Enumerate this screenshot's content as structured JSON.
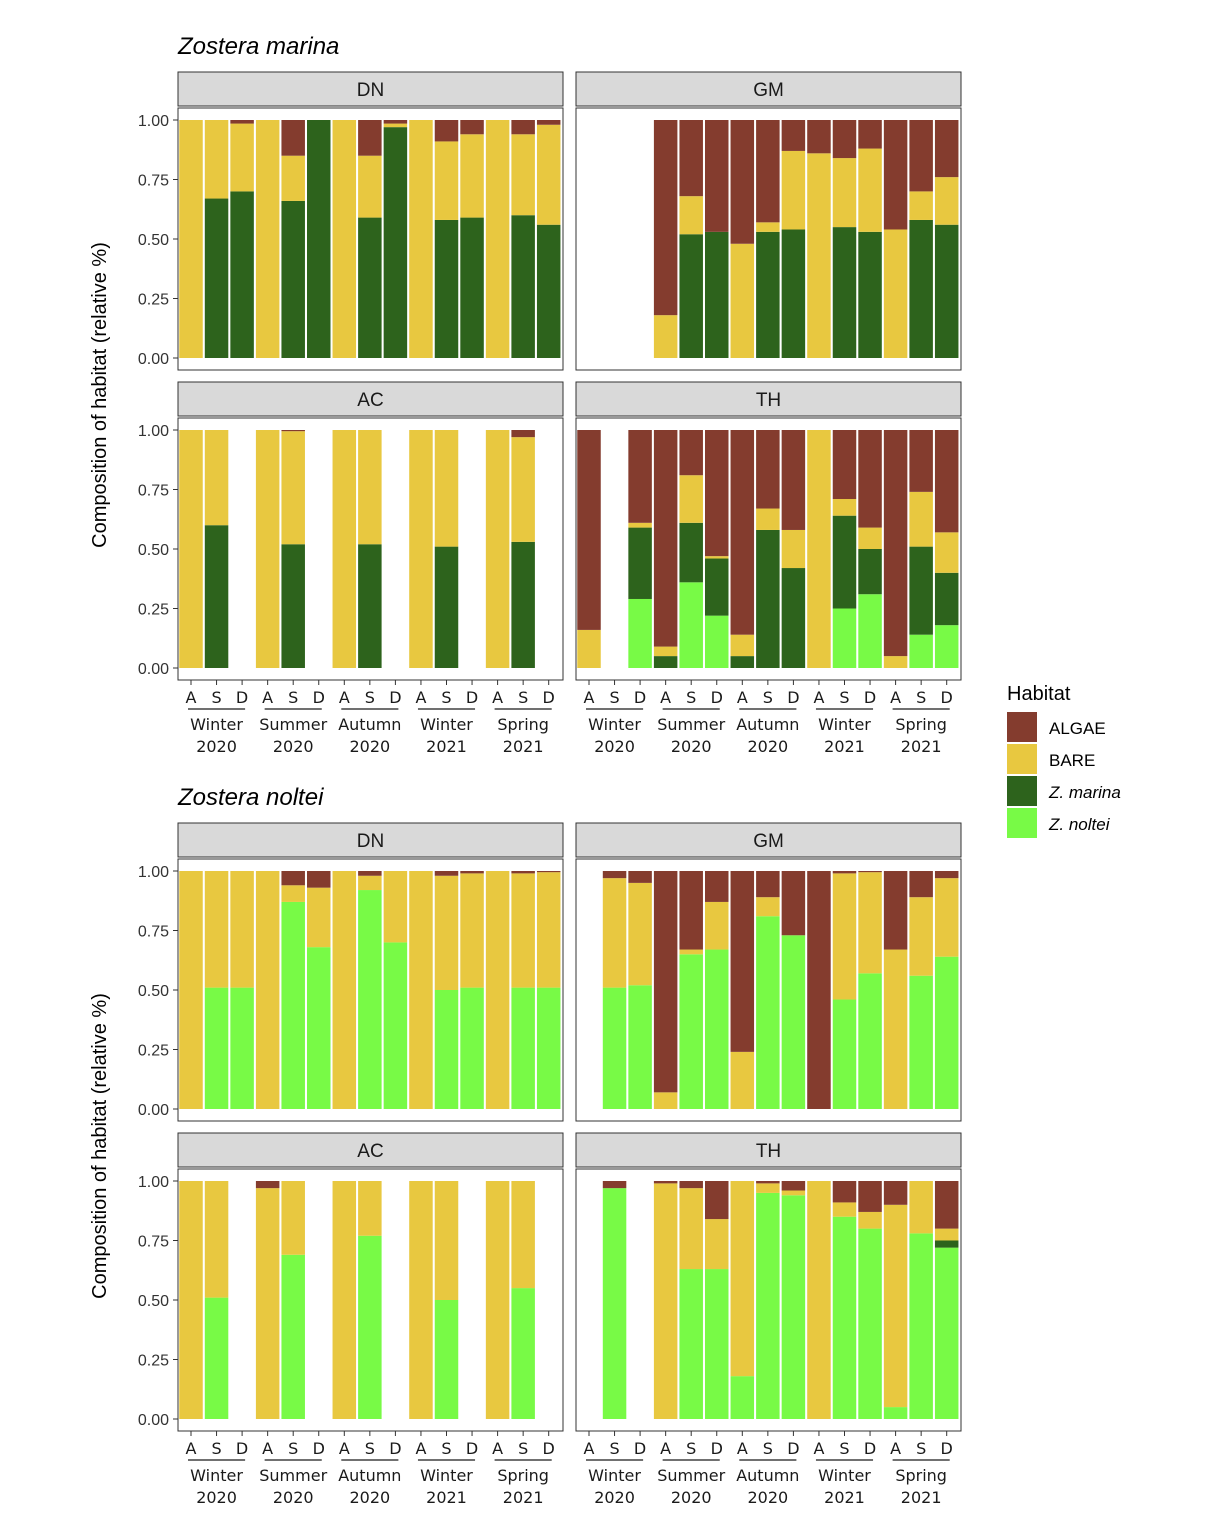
{
  "colors": {
    "ALGAE": "#843C2E",
    "BARE": "#E8C840",
    "Z. marina": "#2D631C",
    "Z. noltei": "#78FA46"
  },
  "chart_data": {
    "type": "bar",
    "stacked": true,
    "ylabel": "Composition of habitat (relative %)",
    "ylim": [
      0,
      1
    ],
    "yticks": [
      "0.00",
      "0.25",
      "0.50",
      "0.75",
      "1.00"
    ],
    "month_labels": [
      "A",
      "S",
      "D"
    ],
    "season_labels": [
      [
        "Winter",
        "2020"
      ],
      [
        "Summer",
        "2020"
      ],
      [
        "Autumn",
        "2020"
      ],
      [
        "Winter",
        "2021"
      ],
      [
        "Spring",
        "2021"
      ]
    ],
    "legend": {
      "title": "Habitat",
      "position": "right",
      "items": [
        {
          "key": "ALGAE",
          "label": "ALGAE",
          "italic": false
        },
        {
          "key": "BARE",
          "label": "BARE",
          "italic": false
        },
        {
          "key": "Z. marina",
          "label": "Z. marina",
          "italic": true
        },
        {
          "key": "Z. noltei",
          "label": "Z. noltei",
          "italic": true
        }
      ]
    },
    "series_order": [
      "Z. noltei",
      "Z. marina",
      "BARE",
      "ALGAE"
    ],
    "blocks": [
      {
        "title": "Zostera marina",
        "panels": [
          {
            "site": "DN",
            "bars": [
              {
                "Z. marina": 0,
                "BARE": 1.0,
                "ALGAE": 0
              },
              {
                "Z. marina": 0.67,
                "BARE": 0.33,
                "ALGAE": 0
              },
              {
                "Z. marina": 0.7,
                "BARE": 0.285,
                "ALGAE": 0.015
              },
              {
                "Z. marina": 0,
                "BARE": 1.0,
                "ALGAE": 0
              },
              {
                "Z. marina": 0.66,
                "BARE": 0.19,
                "ALGAE": 0.15
              },
              {
                "Z. marina": 1.0,
                "BARE": 0,
                "ALGAE": 0
              },
              {
                "Z. marina": 0,
                "BARE": 1.0,
                "ALGAE": 0
              },
              {
                "Z. marina": 0.59,
                "BARE": 0.26,
                "ALGAE": 0.15
              },
              {
                "Z. marina": 0.97,
                "BARE": 0.015,
                "ALGAE": 0.015
              },
              {
                "Z. marina": 0,
                "BARE": 1.0,
                "ALGAE": 0
              },
              {
                "Z. marina": 0.58,
                "BARE": 0.33,
                "ALGAE": 0.09
              },
              {
                "Z. marina": 0.59,
                "BARE": 0.35,
                "ALGAE": 0.06
              },
              {
                "Z. marina": 0,
                "BARE": 1.0,
                "ALGAE": 0
              },
              {
                "Z. marina": 0.6,
                "BARE": 0.34,
                "ALGAE": 0.06
              },
              {
                "Z. marina": 0.56,
                "BARE": 0.42,
                "ALGAE": 0.02
              }
            ]
          },
          {
            "site": "GM",
            "bars": [
              null,
              null,
              null,
              {
                "Z. marina": 0,
                "BARE": 0.18,
                "ALGAE": 0.82
              },
              {
                "Z. marina": 0.52,
                "BARE": 0.16,
                "ALGAE": 0.32
              },
              {
                "Z. marina": 0.53,
                "BARE": 0,
                "ALGAE": 0.47
              },
              {
                "Z. marina": 0,
                "BARE": 0.48,
                "ALGAE": 0.52
              },
              {
                "Z. marina": 0.53,
                "BARE": 0.04,
                "ALGAE": 0.43
              },
              {
                "Z. marina": 0.54,
                "BARE": 0.33,
                "ALGAE": 0.13
              },
              {
                "Z. marina": 0,
                "BARE": 0.86,
                "ALGAE": 0.14
              },
              {
                "Z. marina": 0.55,
                "BARE": 0.29,
                "ALGAE": 0.16
              },
              {
                "Z. marina": 0.53,
                "BARE": 0.35,
                "ALGAE": 0.12
              },
              {
                "Z. marina": 0,
                "BARE": 0.54,
                "ALGAE": 0.46
              },
              {
                "Z. marina": 0.58,
                "BARE": 0.12,
                "ALGAE": 0.3
              },
              {
                "Z. marina": 0.56,
                "BARE": 0.2,
                "ALGAE": 0.24
              }
            ]
          },
          {
            "site": "AC",
            "bars": [
              {
                "Z. marina": 0,
                "BARE": 1.0,
                "ALGAE": 0
              },
              {
                "Z. marina": 0.6,
                "BARE": 0.4,
                "ALGAE": 0
              },
              null,
              {
                "Z. marina": 0,
                "BARE": 1.0,
                "ALGAE": 0
              },
              {
                "Z. marina": 0.52,
                "BARE": 0.475,
                "ALGAE": 0.005
              },
              null,
              {
                "Z. marina": 0,
                "BARE": 1.0,
                "ALGAE": 0
              },
              {
                "Z. marina": 0.52,
                "BARE": 0.48,
                "ALGAE": 0
              },
              null,
              {
                "Z. marina": 0,
                "BARE": 1.0,
                "ALGAE": 0
              },
              {
                "Z. marina": 0.51,
                "BARE": 0.49,
                "ALGAE": 0
              },
              null,
              {
                "Z. marina": 0,
                "BARE": 1.0,
                "ALGAE": 0
              },
              {
                "Z. marina": 0.53,
                "BARE": 0.44,
                "ALGAE": 0.03
              },
              null
            ]
          },
          {
            "site": "TH",
            "bars": [
              {
                "Z. noltei": 0,
                "Z. marina": 0,
                "BARE": 0.16,
                "ALGAE": 0.84
              },
              null,
              {
                "Z. noltei": 0.29,
                "Z. marina": 0.3,
                "BARE": 0.02,
                "ALGAE": 0.39
              },
              {
                "Z. noltei": 0,
                "Z. marina": 0.05,
                "BARE": 0.04,
                "ALGAE": 0.91
              },
              {
                "Z. noltei": 0.36,
                "Z. marina": 0.25,
                "BARE": 0.2,
                "ALGAE": 0.19
              },
              {
                "Z. noltei": 0.22,
                "Z. marina": 0.24,
                "BARE": 0.01,
                "ALGAE": 0.53
              },
              {
                "Z. noltei": 0,
                "Z. marina": 0.05,
                "BARE": 0.09,
                "ALGAE": 0.86
              },
              {
                "Z. noltei": 0,
                "Z. marina": 0.58,
                "BARE": 0.09,
                "ALGAE": 0.33
              },
              {
                "Z. noltei": 0,
                "Z. marina": 0.42,
                "BARE": 0.16,
                "ALGAE": 0.42
              },
              {
                "Z. noltei": 0,
                "Z. marina": 0,
                "BARE": 1.0,
                "ALGAE": 0
              },
              {
                "Z. noltei": 0.25,
                "Z. marina": 0.39,
                "BARE": 0.07,
                "ALGAE": 0.29
              },
              {
                "Z. noltei": 0.31,
                "Z. marina": 0.19,
                "BARE": 0.09,
                "ALGAE": 0.41
              },
              {
                "Z. noltei": 0,
                "Z. marina": 0,
                "BARE": 0.05,
                "ALGAE": 0.95
              },
              {
                "Z. noltei": 0.14,
                "Z. marina": 0.37,
                "BARE": 0.23,
                "ALGAE": 0.26
              },
              {
                "Z. noltei": 0.18,
                "Z. marina": 0.22,
                "BARE": 0.17,
                "ALGAE": 0.43
              }
            ]
          }
        ]
      },
      {
        "title": "Zostera noltei",
        "panels": [
          {
            "site": "DN",
            "bars": [
              {
                "Z. noltei": 0,
                "BARE": 1.0,
                "ALGAE": 0
              },
              {
                "Z. noltei": 0.51,
                "BARE": 0.49,
                "ALGAE": 0
              },
              {
                "Z. noltei": 0.51,
                "BARE": 0.49,
                "ALGAE": 0
              },
              {
                "Z. noltei": 0,
                "BARE": 1.0,
                "ALGAE": 0
              },
              {
                "Z. noltei": 0.87,
                "BARE": 0.07,
                "ALGAE": 0.06
              },
              {
                "Z. noltei": 0.68,
                "BARE": 0.25,
                "ALGAE": 0.07
              },
              {
                "Z. noltei": 0,
                "BARE": 1.0,
                "ALGAE": 0
              },
              {
                "Z. noltei": 0.92,
                "BARE": 0.06,
                "ALGAE": 0.02
              },
              {
                "Z. noltei": 0.7,
                "BARE": 0.3,
                "ALGAE": 0
              },
              {
                "Z. noltei": 0,
                "BARE": 1.0,
                "ALGAE": 0
              },
              {
                "Z. noltei": 0.5,
                "BARE": 0.48,
                "ALGAE": 0.02
              },
              {
                "Z. noltei": 0.51,
                "BARE": 0.48,
                "ALGAE": 0.01
              },
              {
                "Z. noltei": 0,
                "BARE": 1.0,
                "ALGAE": 0
              },
              {
                "Z. noltei": 0.51,
                "BARE": 0.48,
                "ALGAE": 0.01
              },
              {
                "Z. noltei": 0.51,
                "BARE": 0.485,
                "ALGAE": 0.005
              }
            ]
          },
          {
            "site": "GM",
            "bars": [
              null,
              {
                "Z. noltei": 0.51,
                "BARE": 0.46,
                "ALGAE": 0.03
              },
              {
                "Z. noltei": 0.52,
                "BARE": 0.43,
                "ALGAE": 0.05
              },
              {
                "Z. noltei": 0,
                "BARE": 0.07,
                "ALGAE": 0.93
              },
              {
                "Z. noltei": 0.65,
                "BARE": 0.02,
                "ALGAE": 0.33
              },
              {
                "Z. noltei": 0.67,
                "BARE": 0.2,
                "ALGAE": 0.13
              },
              {
                "Z. noltei": 0,
                "BARE": 0.24,
                "ALGAE": 0.76
              },
              {
                "Z. noltei": 0.81,
                "BARE": 0.08,
                "ALGAE": 0.11
              },
              {
                "Z. noltei": 0.73,
                "BARE": 0,
                "ALGAE": 0.27
              },
              {
                "Z. noltei": 0,
                "BARE": 0,
                "ALGAE": 1.0
              },
              {
                "Z. noltei": 0.46,
                "BARE": 0.53,
                "ALGAE": 0.01
              },
              {
                "Z. noltei": 0.57,
                "BARE": 0.425,
                "ALGAE": 0.005
              },
              {
                "Z. noltei": 0,
                "BARE": 0.67,
                "ALGAE": 0.33
              },
              {
                "Z. noltei": 0.56,
                "BARE": 0.33,
                "ALGAE": 0.11
              },
              {
                "Z. noltei": 0.64,
                "BARE": 0.33,
                "ALGAE": 0.03
              }
            ]
          },
          {
            "site": "AC",
            "bars": [
              {
                "Z. noltei": 0,
                "BARE": 1.0,
                "ALGAE": 0
              },
              {
                "Z. noltei": 0.51,
                "BARE": 0.49,
                "ALGAE": 0
              },
              null,
              {
                "Z. noltei": 0,
                "BARE": 0.97,
                "ALGAE": 0.03
              },
              {
                "Z. noltei": 0.69,
                "BARE": 0.31,
                "ALGAE": 0
              },
              null,
              {
                "Z. noltei": 0,
                "BARE": 1.0,
                "ALGAE": 0
              },
              {
                "Z. noltei": 0.77,
                "BARE": 0.23,
                "ALGAE": 0
              },
              null,
              {
                "Z. noltei": 0,
                "BARE": 1.0,
                "ALGAE": 0
              },
              {
                "Z. noltei": 0.5,
                "BARE": 0.5,
                "ALGAE": 0
              },
              null,
              {
                "Z. noltei": 0,
                "BARE": 1.0,
                "ALGAE": 0
              },
              {
                "Z. noltei": 0.55,
                "BARE": 0.45,
                "ALGAE": 0
              },
              null
            ]
          },
          {
            "site": "TH",
            "bars": [
              null,
              {
                "Z. noltei": 0.97,
                "Z. marina": 0,
                "BARE": 0,
                "ALGAE": 0.03
              },
              null,
              {
                "Z. noltei": 0,
                "Z. marina": 0,
                "BARE": 0.99,
                "ALGAE": 0.01
              },
              {
                "Z. noltei": 0.63,
                "Z. marina": 0,
                "BARE": 0.34,
                "ALGAE": 0.03
              },
              {
                "Z. noltei": 0.63,
                "Z. marina": 0,
                "BARE": 0.21,
                "ALGAE": 0.16
              },
              {
                "Z. noltei": 0.18,
                "Z. marina": 0,
                "BARE": 0.82,
                "ALGAE": 0
              },
              {
                "Z. noltei": 0.95,
                "Z. marina": 0,
                "BARE": 0.04,
                "ALGAE": 0.01
              },
              {
                "Z. noltei": 0.94,
                "Z. marina": 0,
                "BARE": 0.02,
                "ALGAE": 0.04
              },
              {
                "Z. noltei": 0,
                "Z. marina": 0,
                "BARE": 1.0,
                "ALGAE": 0
              },
              {
                "Z. noltei": 0.85,
                "Z. marina": 0,
                "BARE": 0.06,
                "ALGAE": 0.09
              },
              {
                "Z. noltei": 0.8,
                "Z. marina": 0,
                "BARE": 0.07,
                "ALGAE": 0.13
              },
              {
                "Z. noltei": 0.05,
                "Z. marina": 0,
                "BARE": 0.85,
                "ALGAE": 0.1
              },
              {
                "Z. noltei": 0.78,
                "Z. marina": 0,
                "BARE": 0.22,
                "ALGAE": 0
              },
              {
                "Z. noltei": 0.72,
                "Z. marina": 0.03,
                "BARE": 0.05,
                "ALGAE": 0.2
              }
            ]
          }
        ]
      }
    ]
  }
}
